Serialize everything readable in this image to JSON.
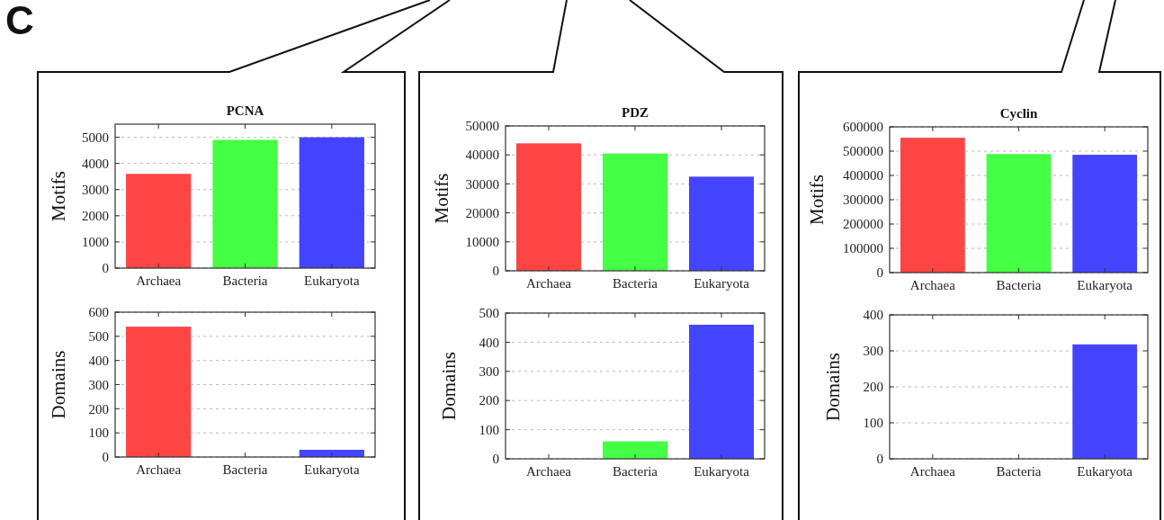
{
  "chart_data": [
    {
      "type": "bar",
      "title": "PCNA",
      "ylabel": "Motifs",
      "categories": [
        "Archaea",
        "Bacteria",
        "Eukaryota"
      ],
      "values": [
        3600,
        4900,
        5000
      ],
      "colors": [
        "#ff4444",
        "#44ff44",
        "#4444ff"
      ],
      "ylim": [
        0,
        5500
      ],
      "yticks": [
        0,
        1000,
        2000,
        3000,
        4000,
        5000
      ],
      "grid": "y",
      "annotations": [
        "C"
      ]
    },
    {
      "type": "bar",
      "ylabel": "Domains",
      "categories": [
        "Archaea",
        "Bacteria",
        "Eukaryota"
      ],
      "values": [
        540,
        0,
        30
      ],
      "colors": [
        "#ff4444",
        "#44ff44",
        "#4444ff"
      ],
      "ylim": [
        0,
        600
      ],
      "yticks": [
        0,
        100,
        200,
        300,
        400,
        500,
        600
      ],
      "grid": "y"
    },
    {
      "type": "bar",
      "title": "PDZ",
      "ylabel": "Motifs",
      "categories": [
        "Archaea",
        "Bacteria",
        "Eukaryota"
      ],
      "values": [
        44000,
        40500,
        32500
      ],
      "colors": [
        "#ff4444",
        "#44ff44",
        "#4444ff"
      ],
      "ylim": [
        0,
        50000
      ],
      "yticks": [
        0,
        10000,
        20000,
        30000,
        40000,
        50000
      ],
      "grid": "y"
    },
    {
      "type": "bar",
      "ylabel": "Domains",
      "categories": [
        "Archaea",
        "Bacteria",
        "Eukaryota"
      ],
      "values": [
        0,
        60,
        460
      ],
      "colors": [
        "#ff4444",
        "#44ff44",
        "#4444ff"
      ],
      "ylim": [
        0,
        500
      ],
      "yticks": [
        0,
        100,
        200,
        300,
        400,
        500
      ],
      "grid": "y"
    },
    {
      "type": "bar",
      "title": "Cyclin",
      "ylabel": "Motifs",
      "categories": [
        "Archaea",
        "Bacteria",
        "Eukaryota"
      ],
      "values": [
        555000,
        488000,
        485000
      ],
      "colors": [
        "#ff4444",
        "#44ff44",
        "#4444ff"
      ],
      "ylim": [
        0,
        600000
      ],
      "yticks": [
        0,
        100000,
        200000,
        300000,
        400000,
        500000,
        600000
      ],
      "grid": "y"
    },
    {
      "type": "bar",
      "ylabel": "Domains",
      "categories": [
        "Archaea",
        "Bacteria",
        "Eukaryota"
      ],
      "values": [
        0,
        0,
        318
      ],
      "colors": [
        "#ff4444",
        "#44ff44",
        "#4444ff"
      ],
      "ylim": [
        0,
        400
      ],
      "yticks": [
        0,
        100,
        200,
        300,
        400
      ],
      "grid": "y"
    }
  ]
}
